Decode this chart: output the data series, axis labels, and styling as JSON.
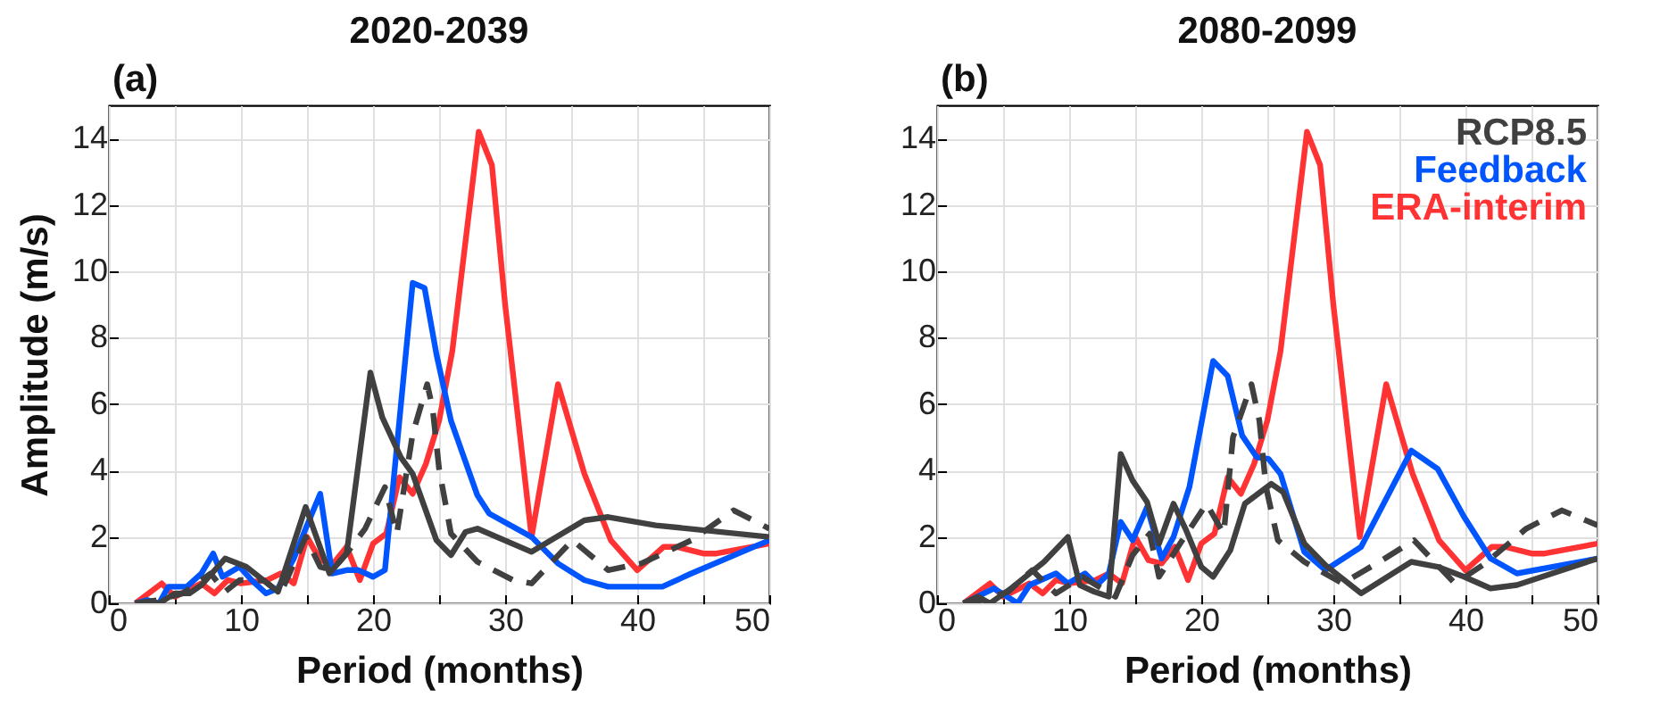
{
  "chart_data": [
    {
      "type": "line",
      "title": "2020-2039",
      "xlabel": "Period (months)",
      "ylabel": "Amplitude (m/s)",
      "annotations": [
        "(a)"
      ],
      "xlim": [
        0,
        50
      ],
      "xticks": [
        0,
        {
          "value": 5,
          "label": null
        },
        10,
        {
          "value": 15,
          "label": null
        },
        20,
        {
          "value": 25,
          "label": null
        },
        30,
        {
          "value": 35,
          "label": null
        },
        40,
        {
          "value": 45,
          "label": null
        },
        50
      ],
      "ylim": [
        0,
        15
      ],
      "yticks": [
        0,
        2,
        4,
        6,
        8,
        10,
        12,
        14
      ],
      "grid": true,
      "series": [
        {
          "color": "#ff3333",
          "x": [
            2,
            4,
            5,
            7,
            8,
            9,
            10,
            12,
            13,
            14,
            15,
            16,
            17,
            18,
            19,
            20,
            21,
            22,
            23,
            24,
            25,
            26,
            28,
            29,
            30,
            32,
            34,
            36,
            38,
            40,
            42,
            43,
            45,
            46,
            50
          ],
          "values": [
            0,
            0.6,
            0.2,
            0.6,
            0.3,
            0.7,
            0.6,
            0.7,
            0.9,
            0.6,
            2.0,
            1.3,
            1.2,
            1.7,
            0.7,
            1.8,
            2.1,
            3.8,
            3.3,
            4.2,
            5.5,
            7.6,
            14.2,
            13.2,
            9.0,
            2.0,
            6.6,
            3.9,
            1.9,
            1.0,
            1.7,
            1.7,
            1.5,
            1.5,
            1.8
          ]
        },
        {
          "color": "#0055ff",
          "x": [
            2,
            2.9,
            3.8,
            4.5,
            5.9,
            7,
            7.9,
            8.6,
            9.9,
            10.8,
            11.9,
            12.8,
            14,
            14.9,
            16,
            16.9,
            18,
            18.9,
            20,
            20.9,
            23,
            23.9,
            24.8,
            25.9,
            27.9,
            28.8,
            32,
            34,
            36,
            37.8,
            41.9,
            44.1,
            50
          ],
          "values": [
            0,
            0.1,
            0,
            0.5,
            0.5,
            0.9,
            1.5,
            0.8,
            1.1,
            0.7,
            0.3,
            0.45,
            1.35,
            2.25,
            3.3,
            0.9,
            1.0,
            1.0,
            0.8,
            1.0,
            9.65,
            9.5,
            7.5,
            5.5,
            3.25,
            2.7,
            2.0,
            1.2,
            0.7,
            0.5,
            0.5,
            0.9,
            1.9
          ]
        },
        {
          "color": "#404040",
          "line_style": "dashed",
          "x": [
            2,
            3.8,
            5.6,
            7.7,
            8.8,
            9.9,
            11.7,
            13,
            14.9,
            16,
            16.9,
            18,
            19.4,
            20.9,
            21.8,
            23,
            24.1,
            24.5,
            25,
            25.9,
            27.9,
            30.6,
            32,
            35.1,
            37.8,
            40.3,
            44.1,
            47.3,
            50
          ],
          "values": [
            0,
            0.1,
            0.3,
            0.9,
            0.35,
            0.7,
            0.7,
            0.3,
            2.0,
            1.1,
            1.0,
            1.5,
            2.25,
            3.5,
            2.1,
            5.1,
            6.6,
            5.9,
            4.05,
            2.1,
            1.25,
            0.7,
            0.6,
            1.9,
            1.0,
            1.2,
            1.9,
            2.8,
            2.25
          ]
        },
        {
          "color": "#404040",
          "x": [
            2,
            3.8,
            5,
            6.1,
            7,
            8.8,
            10.4,
            12.8,
            14.9,
            16.7,
            18,
            19.8,
            20.7,
            22.1,
            23,
            24.8,
            25.9,
            27,
            27.9,
            32,
            36,
            37.8,
            41.4,
            50
          ],
          "values": [
            0,
            0,
            0.3,
            0.3,
            0.55,
            1.35,
            1.1,
            0.35,
            2.9,
            0.9,
            1.5,
            6.95,
            5.6,
            4.4,
            3.9,
            1.9,
            1.45,
            2.15,
            2.25,
            1.55,
            2.5,
            2.6,
            2.35,
            2.0
          ]
        }
      ]
    },
    {
      "type": "line",
      "title": "2080-2099",
      "xlabel": "Period (months)",
      "annotations": [
        "(b)"
      ],
      "legend": "top right",
      "xlim": [
        0,
        50
      ],
      "xticks": [
        0,
        {
          "value": 5,
          "label": null
        },
        10,
        {
          "value": 15,
          "label": null
        },
        20,
        {
          "value": 25,
          "label": null
        },
        30,
        {
          "value": 35,
          "label": null
        },
        40,
        {
          "value": 45,
          "label": null
        },
        50
      ],
      "ylim": [
        0,
        15
      ],
      "yticks": [
        0,
        2,
        4,
        6,
        8,
        10,
        12,
        14
      ],
      "grid": true,
      "series": [
        {
          "name": "ERA-interim",
          "color": "#ff3333",
          "x": [
            2,
            4,
            5,
            7,
            8,
            9,
            10,
            12,
            13,
            14,
            15,
            16,
            17,
            18,
            19,
            20,
            21,
            22,
            23,
            24,
            25,
            26,
            28,
            29,
            30,
            32,
            34,
            36,
            38,
            40,
            42,
            43,
            45,
            46,
            50
          ],
          "values": [
            0,
            0.6,
            0.2,
            0.6,
            0.3,
            0.7,
            0.6,
            0.7,
            0.9,
            0.6,
            2.0,
            1.3,
            1.2,
            1.7,
            0.7,
            1.8,
            2.1,
            3.8,
            3.3,
            4.2,
            5.5,
            7.6,
            14.2,
            13.2,
            9.0,
            2.0,
            6.6,
            3.9,
            1.9,
            1.0,
            1.7,
            1.7,
            1.5,
            1.5,
            1.8
          ]
        },
        {
          "name": "Feedback",
          "color": "#0055ff",
          "x": [
            2,
            4.3,
            6.1,
            7,
            9,
            9.9,
            11.2,
            12.1,
            13,
            13.9,
            14.8,
            15.9,
            17,
            17.9,
            19.1,
            20.9,
            22,
            23.1,
            24.2,
            25.1,
            26,
            27.8,
            29.4,
            32.1,
            35.9,
            37.9,
            39.9,
            41.9,
            43.9,
            50
          ],
          "values": [
            0,
            0.45,
            0,
            0.55,
            0.9,
            0.6,
            0.9,
            0.55,
            0.9,
            2.45,
            1.9,
            2.9,
            1.35,
            2.0,
            3.5,
            7.3,
            6.85,
            5.05,
            4.4,
            4.35,
            3.9,
            1.55,
            1.0,
            1.7,
            4.6,
            4.05,
            2.6,
            1.35,
            0.9,
            1.35
          ]
        },
        {
          "color": "#404040",
          "line_style": "dashed",
          "x": [
            2,
            3.4,
            5.4,
            7.2,
            9,
            11,
            13.5,
            14.8,
            16.1,
            16.8,
            18.4,
            20.4,
            21.7,
            22.4,
            23.8,
            24.4,
            24.9,
            25.8,
            27.8,
            30.7,
            33.9,
            36.1,
            39.2,
            41.5,
            44.6,
            47.3,
            50
          ],
          "values": [
            0,
            0.1,
            0.35,
            1.0,
            0.3,
            0.8,
            0.2,
            1.45,
            2.1,
            0.8,
            1.8,
            3.0,
            2.1,
            5.0,
            6.6,
            5.5,
            3.5,
            1.9,
            1.25,
            0.6,
            1.35,
            1.9,
            0.6,
            1.2,
            2.25,
            2.8,
            2.35
          ]
        },
        {
          "name": "RCP8.5",
          "color": "#404040",
          "x": [
            2,
            3.1,
            4,
            5.6,
            8.1,
            9.9,
            10.8,
            11.9,
            13,
            13.9,
            14.8,
            15.9,
            16.8,
            17.9,
            18.8,
            20,
            20.9,
            22.2,
            23.3,
            25.3,
            26.2,
            27.8,
            29.4,
            32.1,
            35.9,
            37.9,
            39.9,
            41.9,
            43.9,
            50
          ],
          "values": [
            0,
            0.2,
            0,
            0.45,
            1.25,
            2.0,
            0.55,
            0.35,
            0.2,
            4.5,
            3.7,
            3.05,
            1.8,
            3.0,
            2.25,
            1.1,
            0.8,
            1.6,
            3.0,
            3.6,
            3.35,
            1.8,
            1.15,
            0.3,
            1.25,
            1.1,
            0.8,
            0.45,
            0.55,
            1.35
          ]
        }
      ]
    }
  ]
}
